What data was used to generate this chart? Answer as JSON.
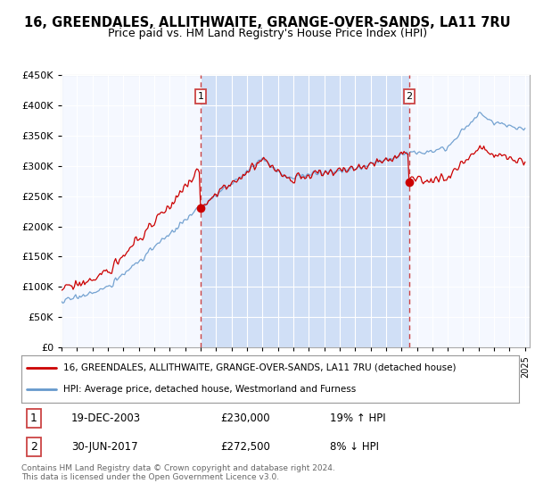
{
  "title": "16, GREENDALES, ALLITHWAITE, GRANGE-OVER-SANDS, LA11 7RU",
  "subtitle": "Price paid vs. HM Land Registry's House Price Index (HPI)",
  "legend_line1": "16, GREENDALES, ALLITHWAITE, GRANGE-OVER-SANDS, LA11 7RU (detached house)",
  "legend_line2": "HPI: Average price, detached house, Westmorland and Furness",
  "footnote": "Contains HM Land Registry data © Crown copyright and database right 2024.\nThis data is licensed under the Open Government Licence v3.0.",
  "annotation1_label": "1",
  "annotation1_date": "19-DEC-2003",
  "annotation1_price": "£230,000",
  "annotation1_hpi": "19% ↑ HPI",
  "annotation2_label": "2",
  "annotation2_date": "30-JUN-2017",
  "annotation2_price": "£272,500",
  "annotation2_hpi": "8% ↓ HPI",
  "ylim": [
    0,
    450000
  ],
  "yticks": [
    0,
    50000,
    100000,
    150000,
    200000,
    250000,
    300000,
    350000,
    400000,
    450000
  ],
  "red_color": "#cc0000",
  "blue_color": "#6699cc",
  "dashed_red": "#cc4444",
  "plot_bg": "#f0f4ff",
  "shade_color": "#ccddf5",
  "grid_color": "#ffffff"
}
